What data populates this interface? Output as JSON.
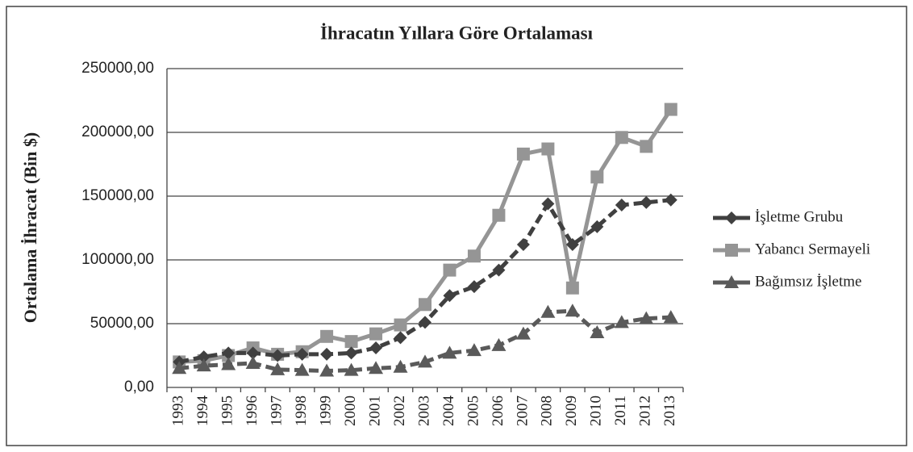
{
  "chart_data": {
    "type": "line",
    "title": "İhracatın Yıllara Göre Ortalaması",
    "y_label": "Ortalama İhracat (Bin $)",
    "categories": [
      "1993",
      "1994",
      "1995",
      "1996",
      "1997",
      "1998",
      "1999",
      "2000",
      "2001",
      "2002",
      "2003",
      "2004",
      "2005",
      "2006",
      "2007",
      "2008",
      "2009",
      "2010",
      "2011",
      "2012",
      "2013"
    ],
    "series": [
      {
        "name": "İşletme Grubu",
        "color": "#404040",
        "marker": "diamond",
        "dashed": true,
        "values": [
          20000,
          24000,
          27000,
          27000,
          25000,
          26000,
          26000,
          27000,
          31000,
          39000,
          51000,
          72000,
          79000,
          92000,
          112000,
          144000,
          112000,
          126000,
          143000,
          145000,
          147000
        ]
      },
      {
        "name": "Yabancı Sermayeli",
        "color": "#959595",
        "marker": "square",
        "dashed": false,
        "values": [
          20000,
          21000,
          25000,
          31000,
          26000,
          28000,
          40000,
          36000,
          42000,
          49000,
          65000,
          92000,
          103000,
          135000,
          183000,
          187000,
          78000,
          165000,
          196000,
          189000,
          218000
        ]
      },
      {
        "name": "Bağımsız İşletme",
        "color": "#5a5a5a",
        "marker": "triangle",
        "dashed": true,
        "values": [
          15000,
          17000,
          18000,
          19000,
          14000,
          13500,
          13000,
          13500,
          15000,
          16000,
          20000,
          27000,
          29000,
          33000,
          42000,
          59000,
          60000,
          43000,
          51000,
          54000,
          55000
        ]
      }
    ],
    "ylim": [
      0,
      250000
    ],
    "yticks": [
      {
        "value": 0,
        "label": "0,00"
      },
      {
        "value": 50000,
        "label": "50000,00"
      },
      {
        "value": 100000,
        "label": "100000,00"
      },
      {
        "value": 150000,
        "label": "150000,00"
      },
      {
        "value": 200000,
        "label": "200000,00"
      },
      {
        "value": 250000,
        "label": "250000,00"
      }
    ],
    "grid": true,
    "legend": "right"
  }
}
